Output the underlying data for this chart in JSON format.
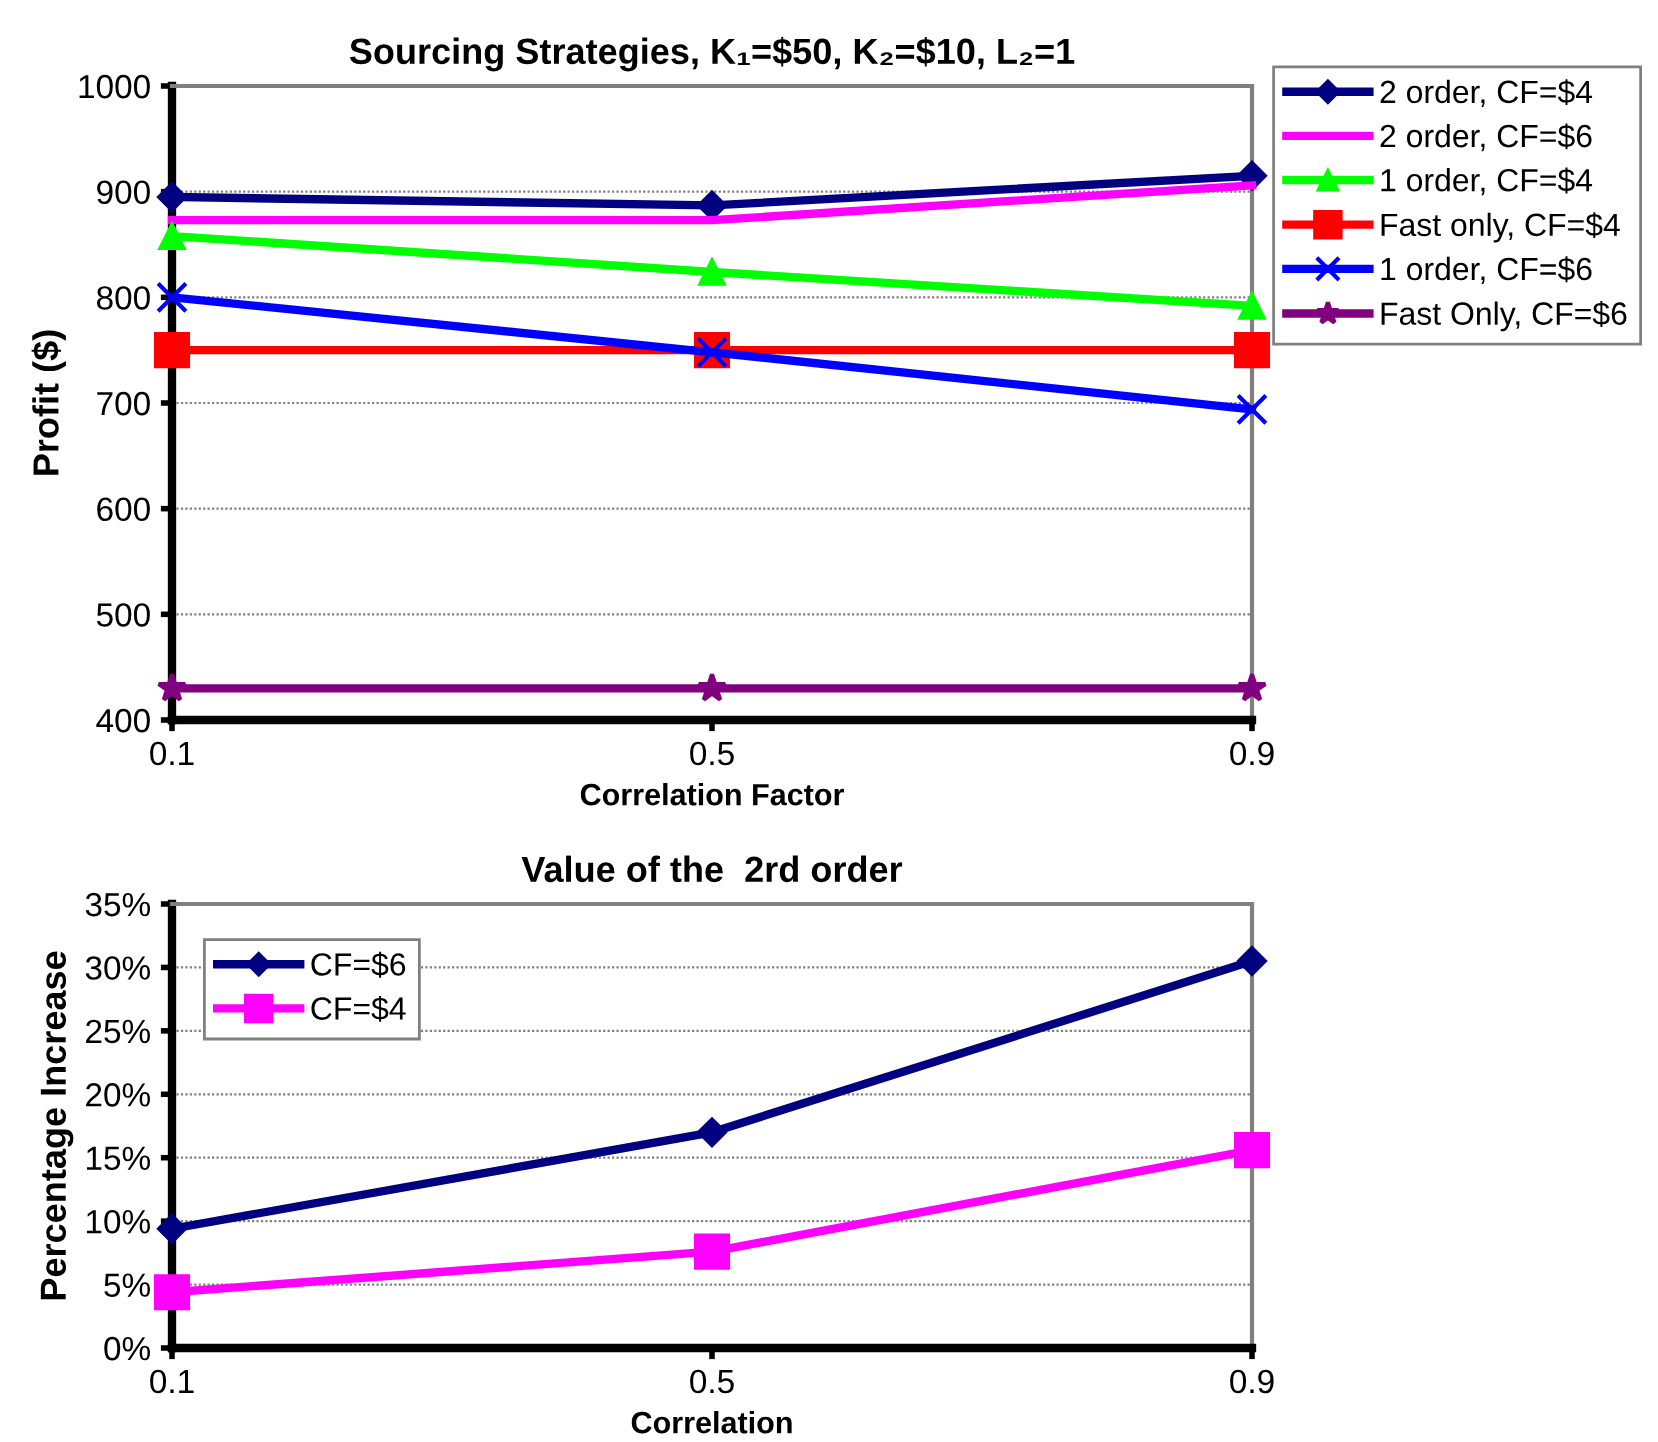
{
  "chart_data": [
    {
      "type": "line",
      "title": "Sourcing Strategies, K₁=$50, K₂=$10, L₂=1",
      "xlabel": "Correlation Factor",
      "ylabel": "Profit ($)",
      "x": [
        0.1,
        0.5,
        0.9
      ],
      "xlim": [
        0.1,
        0.9
      ],
      "xticks": [
        0.1,
        0.5,
        0.9
      ],
      "ylim": [
        400,
        1000
      ],
      "yticks": [
        400,
        500,
        600,
        700,
        800,
        900,
        1000
      ],
      "grid": "y",
      "legend": "top right",
      "series": [
        {
          "name": "2 order, CF=$4",
          "color": "#000080",
          "marker": "diamond",
          "values": [
            895,
            887,
            915
          ]
        },
        {
          "name": "2 order, CF=$6",
          "color": "#ff00ff",
          "marker": "none",
          "values": [
            873,
            873,
            906
          ]
        },
        {
          "name": "1 order, CF=$4",
          "color": "#00ff00",
          "marker": "triangle",
          "values": [
            858,
            824,
            792
          ]
        },
        {
          "name": "Fast only, CF=$4",
          "color": "#ff0000",
          "marker": "square",
          "values": [
            750,
            750,
            750
          ]
        },
        {
          "name": "1 order, CF=$6",
          "color": "#0000ff",
          "marker": "cross",
          "values": [
            800,
            748,
            694
          ]
        },
        {
          "name": "Fast Only, CF=$6",
          "color": "#800080",
          "marker": "star",
          "values": [
            430,
            430,
            430
          ]
        }
      ]
    },
    {
      "type": "line",
      "title": "Value of the  2rd order",
      "xlabel": "Correlation",
      "ylabel": "Percentage Increase",
      "x": [
        0.1,
        0.5,
        0.9
      ],
      "xlim": [
        0.1,
        0.9
      ],
      "xticks": [
        0.1,
        0.5,
        0.9
      ],
      "ylim": [
        0,
        35
      ],
      "yticks": [
        {
          "value": 0,
          "label": "0%"
        },
        {
          "value": 5,
          "label": "5%"
        },
        {
          "value": 10,
          "label": "10%"
        },
        {
          "value": 15,
          "label": "15%"
        },
        {
          "value": 20,
          "label": "20%"
        },
        {
          "value": 25,
          "label": "25%"
        },
        {
          "value": 30,
          "label": "30%"
        },
        {
          "value": 35,
          "label": "35%"
        }
      ],
      "grid": "y",
      "legend": "top left",
      "series": [
        {
          "name": "CF=$6",
          "color": "#000080",
          "marker": "diamond",
          "values": [
            9.4,
            17.0,
            30.5
          ]
        },
        {
          "name": "CF=$4",
          "color": "#ff00ff",
          "marker": "square",
          "values": [
            4.4,
            7.6,
            15.6
          ]
        }
      ]
    }
  ]
}
